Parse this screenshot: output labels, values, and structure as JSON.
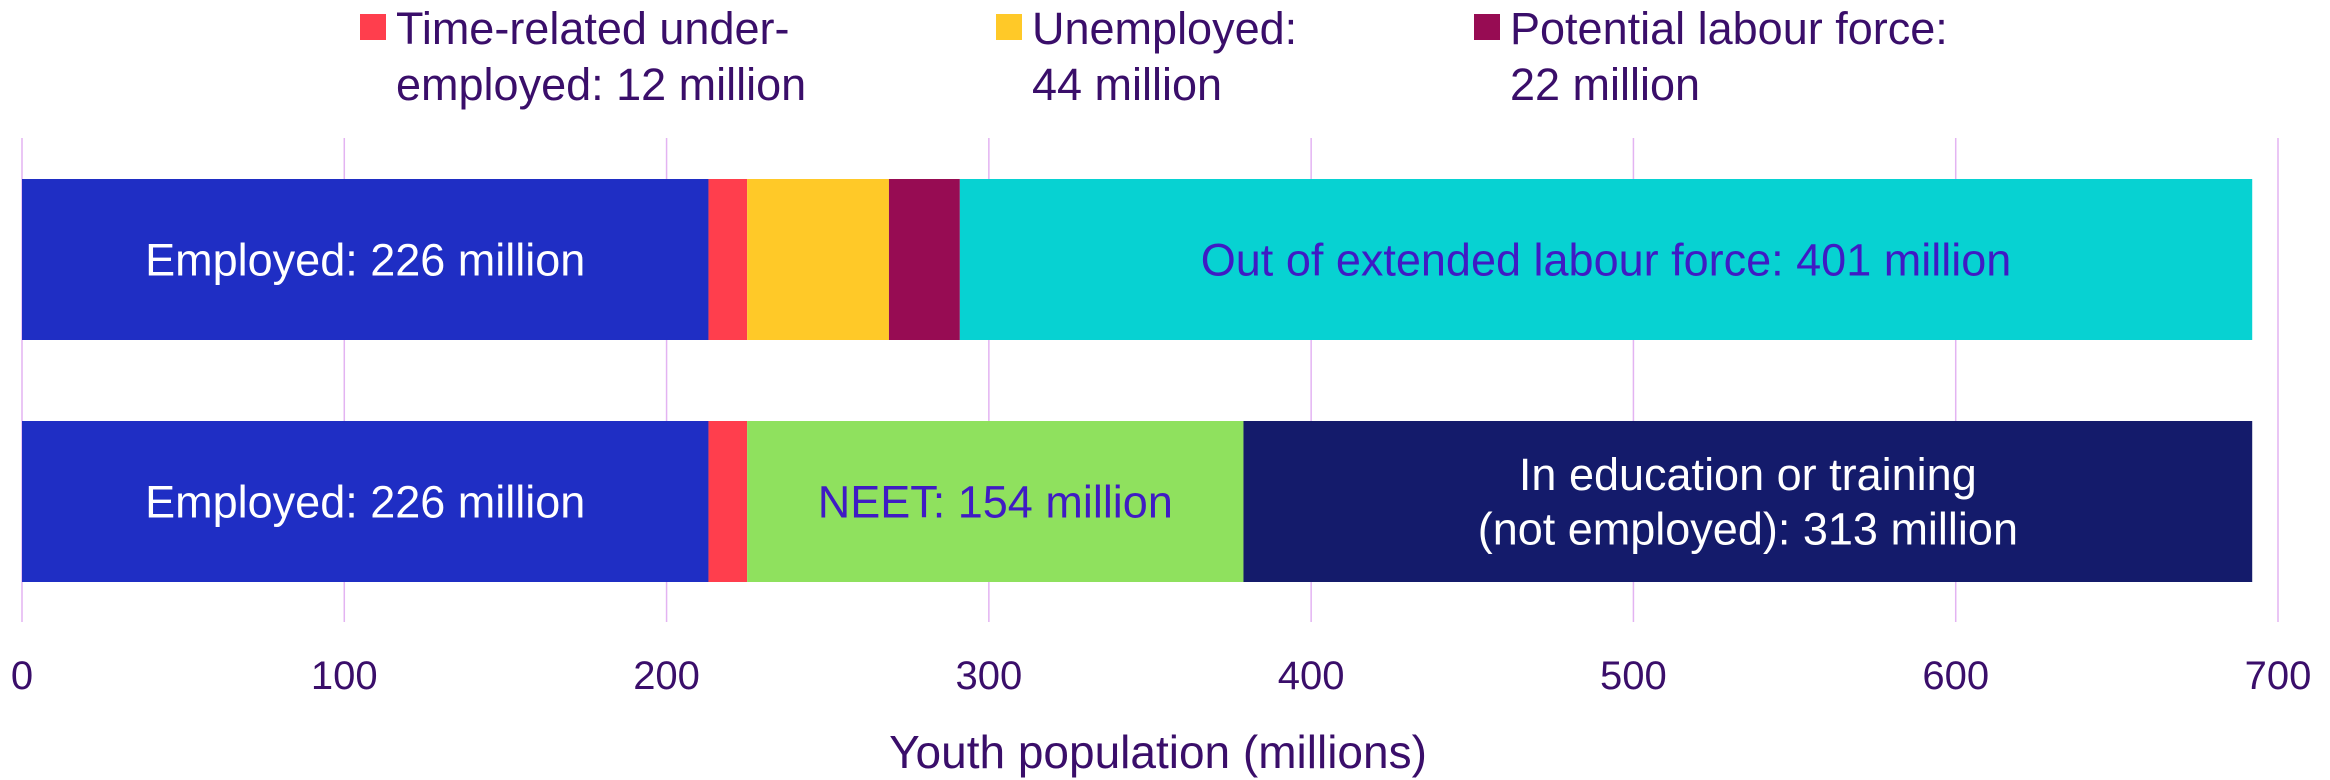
{
  "chart_data": {
    "type": "bar",
    "orientation": "horizontal",
    "stacked": true,
    "xlabel": "Youth population (millions)",
    "ylabel": "",
    "xlim": [
      0,
      700
    ],
    "x_ticks": [
      0,
      100,
      200,
      300,
      400,
      500,
      600,
      700
    ],
    "grid": "vertical",
    "legend_position": "top",
    "legend": [
      {
        "label": "Time-related under-employed: 12 million",
        "lines": [
          "Time-related under-",
          "employed: 12 million"
        ],
        "color": "#FF3E4D"
      },
      {
        "label": "Unemployed: 44 million",
        "lines": [
          "Unemployed:",
          "44 million"
        ],
        "color": "#FFC928"
      },
      {
        "label": "Potential labour force: 22 million",
        "lines": [
          "Potential labour force:",
          "22 million"
        ],
        "color": "#970C53"
      }
    ],
    "bars": [
      {
        "segments": [
          {
            "value": 213,
            "color": "#1F2EC4",
            "label_lines": [
              "Employed: 226 million"
            ],
            "label_color": "#FFFFFF"
          },
          {
            "value": 12,
            "color": "#FF3E4D",
            "label_lines": []
          },
          {
            "value": 44,
            "color": "#FFC928",
            "label_lines": []
          },
          {
            "value": 22,
            "color": "#970C53",
            "label_lines": []
          },
          {
            "value": 401,
            "color": "#07D2D2",
            "label_lines": [
              "Out of extended labour force: 401 million"
            ],
            "label_color": "#3F1BC4"
          }
        ]
      },
      {
        "segments": [
          {
            "value": 213,
            "color": "#1F2EC4",
            "label_lines": [
              "Employed: 226 million"
            ],
            "label_color": "#FFFFFF"
          },
          {
            "value": 12,
            "color": "#FF3E4D",
            "label_lines": []
          },
          {
            "value": 154,
            "color": "#8FE15E",
            "label_lines": [
              "NEET: 154 million"
            ],
            "label_color": "#3F1BC4"
          },
          {
            "value": 313,
            "color": "#141B6B",
            "label_lines": [
              "In education or training",
              "(not employed): 313  million"
            ],
            "label_color": "#FFFFFF"
          }
        ]
      }
    ],
    "colors": {
      "grid": "#E3B3F2",
      "text": "#3A0E6A"
    }
  }
}
